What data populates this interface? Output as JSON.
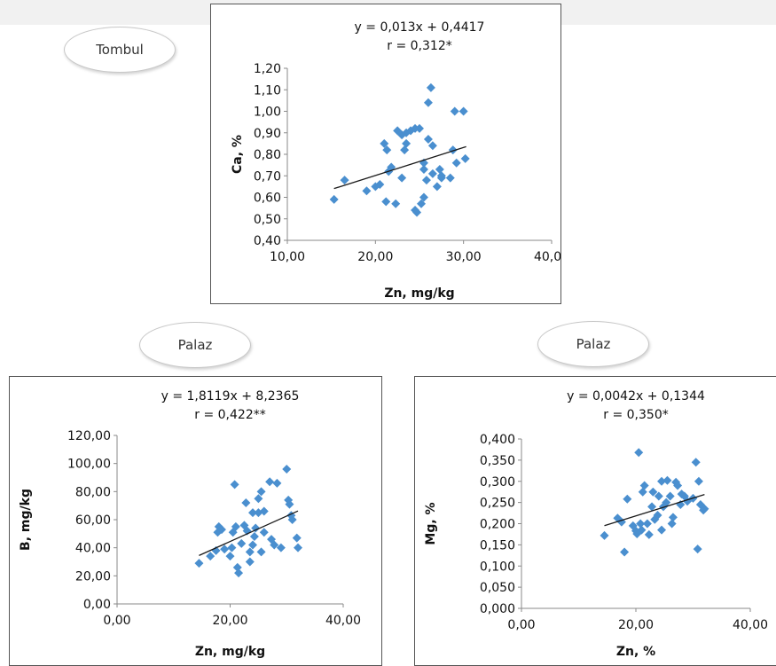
{
  "labels": {
    "top_oval": "Tombul",
    "left_oval": "Palaz",
    "right_oval": "Palaz"
  },
  "colors": {
    "marker": "#4a8fcf",
    "trendline": "#1a1a1a",
    "axis": "#8a8a8a",
    "frame": "#555555"
  },
  "chart_data": [
    {
      "type": "scatter",
      "title": "",
      "equation": "y = 0,013x + 0,4417",
      "r_label": "r = 0,312*",
      "xlabel": "Zn, mg/kg",
      "ylabel": "Ca, %",
      "xlim": [
        10,
        40
      ],
      "ylim": [
        0.4,
        1.2
      ],
      "xticks": [
        10,
        20,
        30,
        40
      ],
      "xtick_labels": [
        "10,00",
        "20,00",
        "30,00",
        "40,00"
      ],
      "yticks": [
        0.4,
        0.5,
        0.6,
        0.7,
        0.8,
        0.9,
        1.0,
        1.1,
        1.2
      ],
      "ytick_labels": [
        "0,40",
        "0,50",
        "0,60",
        "0,70",
        "0,80",
        "0,90",
        "1,00",
        "1,10",
        "1,20"
      ],
      "trendline": {
        "slope": 0.013,
        "intercept": 0.4417,
        "x_range": [
          15.3,
          30.3
        ]
      },
      "points": [
        [
          15.3,
          0.59
        ],
        [
          16.5,
          0.68
        ],
        [
          19,
          0.63
        ],
        [
          20,
          0.65
        ],
        [
          20.5,
          0.66
        ],
        [
          21,
          0.85
        ],
        [
          21.2,
          0.58
        ],
        [
          21.3,
          0.82
        ],
        [
          21.5,
          0.72
        ],
        [
          21.8,
          0.74
        ],
        [
          22.3,
          0.57
        ],
        [
          22.5,
          0.91
        ],
        [
          23,
          0.69
        ],
        [
          23,
          0.89
        ],
        [
          23.3,
          0.82
        ],
        [
          23.5,
          0.85
        ],
        [
          23.5,
          0.9
        ],
        [
          24,
          0.91
        ],
        [
          24.5,
          0.92
        ],
        [
          24.5,
          0.54
        ],
        [
          24.7,
          0.53
        ],
        [
          25,
          0.92
        ],
        [
          25.2,
          0.57
        ],
        [
          25.5,
          0.6
        ],
        [
          25.5,
          0.73
        ],
        [
          25.5,
          0.76
        ],
        [
          25.8,
          0.68
        ],
        [
          26,
          0.87
        ],
        [
          26,
          1.04
        ],
        [
          26.3,
          1.11
        ],
        [
          26.5,
          0.71
        ],
        [
          26.5,
          0.84
        ],
        [
          27,
          0.65
        ],
        [
          27.3,
          0.73
        ],
        [
          27.5,
          0.69
        ],
        [
          27.5,
          0.7
        ],
        [
          28.5,
          0.69
        ],
        [
          28.8,
          0.82
        ],
        [
          29,
          1.0
        ],
        [
          29.2,
          0.76
        ],
        [
          30,
          1.0
        ],
        [
          30.2,
          0.78
        ]
      ]
    },
    {
      "type": "scatter",
      "title": "",
      "equation": "y = 1,8119x + 8,2365",
      "r_label": "r = 0,422**",
      "xlabel": "Zn, mg/kg",
      "ylabel": "B, mg/kg",
      "xlim": [
        0,
        40
      ],
      "ylim": [
        0,
        120
      ],
      "xticks": [
        0,
        20,
        40
      ],
      "xtick_labels": [
        "0,00",
        "20,00",
        "40,00"
      ],
      "yticks": [
        0,
        20,
        40,
        60,
        80,
        100,
        120
      ],
      "ytick_labels": [
        "0,00",
        "20,00",
        "40,00",
        "60,00",
        "80,00",
        "100,00",
        "120,00"
      ],
      "trendline": {
        "slope": 1.8119,
        "intercept": 8.2365,
        "x_range": [
          14.5,
          32
        ]
      },
      "points": [
        [
          14.5,
          29
        ],
        [
          16.5,
          34
        ],
        [
          17.5,
          38
        ],
        [
          17.8,
          51
        ],
        [
          18,
          55
        ],
        [
          18.5,
          53
        ],
        [
          19,
          39
        ],
        [
          20,
          34
        ],
        [
          20.3,
          40
        ],
        [
          20.5,
          51
        ],
        [
          20.8,
          85
        ],
        [
          21,
          55
        ],
        [
          21.3,
          26
        ],
        [
          21.5,
          22
        ],
        [
          22,
          43
        ],
        [
          22.5,
          56
        ],
        [
          22.8,
          72
        ],
        [
          23,
          52
        ],
        [
          23.5,
          30
        ],
        [
          23.5,
          37
        ],
        [
          24,
          42
        ],
        [
          24,
          65
        ],
        [
          24.3,
          48
        ],
        [
          24.5,
          54
        ],
        [
          25,
          65
        ],
        [
          25,
          75
        ],
        [
          25.5,
          80
        ],
        [
          25.5,
          37
        ],
        [
          26,
          51
        ],
        [
          26,
          66
        ],
        [
          27,
          87
        ],
        [
          27.3,
          46
        ],
        [
          27.8,
          42
        ],
        [
          28.3,
          86
        ],
        [
          29,
          40
        ],
        [
          30,
          96
        ],
        [
          30.3,
          74
        ],
        [
          30.5,
          71
        ],
        [
          30.8,
          63
        ],
        [
          31,
          60
        ],
        [
          31.8,
          47
        ],
        [
          32,
          40
        ]
      ]
    },
    {
      "type": "scatter",
      "title": "",
      "equation": "y = 0,0042x + 0,1344",
      "r_label": "r = 0,350*",
      "xlabel": "Zn, %",
      "ylabel": "Mg, %",
      "xlim": [
        0,
        40
      ],
      "ylim": [
        0,
        0.4
      ],
      "xticks": [
        0,
        20,
        40
      ],
      "xtick_labels": [
        "0,00",
        "20,00",
        "40,00"
      ],
      "yticks": [
        0,
        0.05,
        0.1,
        0.15,
        0.2,
        0.25,
        0.3,
        0.35,
        0.4
      ],
      "ytick_labels": [
        "0,000",
        "0,050",
        "0,100",
        "0,150",
        "0,200",
        "0,250",
        "0,300",
        "0,350",
        "0,400"
      ],
      "trendline": {
        "slope": 0.0042,
        "intercept": 0.1344,
        "x_range": [
          14.5,
          32
        ]
      },
      "points": [
        [
          14.5,
          0.172
        ],
        [
          16.8,
          0.213
        ],
        [
          17.5,
          0.204
        ],
        [
          18,
          0.133
        ],
        [
          18.5,
          0.258
        ],
        [
          19.5,
          0.195
        ],
        [
          20,
          0.183
        ],
        [
          20.2,
          0.176
        ],
        [
          20.5,
          0.368
        ],
        [
          20.8,
          0.2
        ],
        [
          21,
          0.185
        ],
        [
          21.2,
          0.275
        ],
        [
          21.5,
          0.29
        ],
        [
          22,
          0.2
        ],
        [
          22.3,
          0.174
        ],
        [
          22.8,
          0.24
        ],
        [
          23,
          0.275
        ],
        [
          23.3,
          0.21
        ],
        [
          23.8,
          0.22
        ],
        [
          24,
          0.265
        ],
        [
          24.5,
          0.3
        ],
        [
          24.5,
          0.185
        ],
        [
          24.8,
          0.24
        ],
        [
          25.3,
          0.25
        ],
        [
          25.5,
          0.302
        ],
        [
          26,
          0.265
        ],
        [
          26.3,
          0.2
        ],
        [
          26.5,
          0.215
        ],
        [
          27,
          0.298
        ],
        [
          27.3,
          0.29
        ],
        [
          27.8,
          0.245
        ],
        [
          28,
          0.27
        ],
        [
          28.5,
          0.265
        ],
        [
          29,
          0.253
        ],
        [
          30,
          0.26
        ],
        [
          30.5,
          0.345
        ],
        [
          30.8,
          0.14
        ],
        [
          31,
          0.3
        ],
        [
          31.3,
          0.245
        ],
        [
          31.8,
          0.232
        ],
        [
          32,
          0.235
        ]
      ]
    }
  ]
}
